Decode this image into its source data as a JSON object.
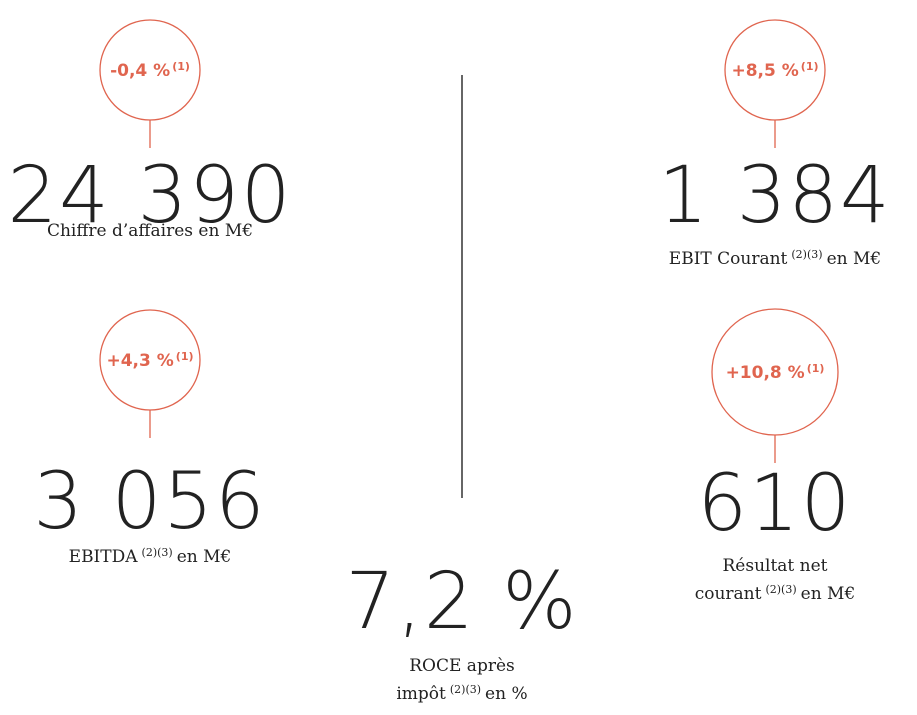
{
  "kpis": [
    {
      "change": "-0,4 %",
      "change_note": "(1)",
      "value": "24 390",
      "label": [
        {
          "text": "Chiffre d’affaires en M€"
        }
      ]
    },
    {
      "change": "+4,3 %",
      "change_note": "(1)",
      "value": "3 056",
      "label": [
        {
          "text": "EBITDA",
          "note": "(2)(3)",
          "after": "en M€"
        }
      ]
    },
    {
      "change": "+8,5 %",
      "change_note": "(1)",
      "value": "1 384",
      "label": [
        {
          "text": "EBIT Courant",
          "note": "(2)(3)",
          "after": "en M€"
        }
      ]
    },
    {
      "change": "+10,8 %",
      "change_note": "(1)",
      "value": "610",
      "label": [
        {
          "text": "Résultat net"
        },
        {
          "text": "courant",
          "note": "(2)(3)",
          "after": "en M€"
        }
      ]
    },
    {
      "value": "7,2 %",
      "label": [
        {
          "text": "ROCE après"
        },
        {
          "text": "impôt",
          "note": "(2)(3)",
          "after": "en %"
        }
      ]
    }
  ]
}
